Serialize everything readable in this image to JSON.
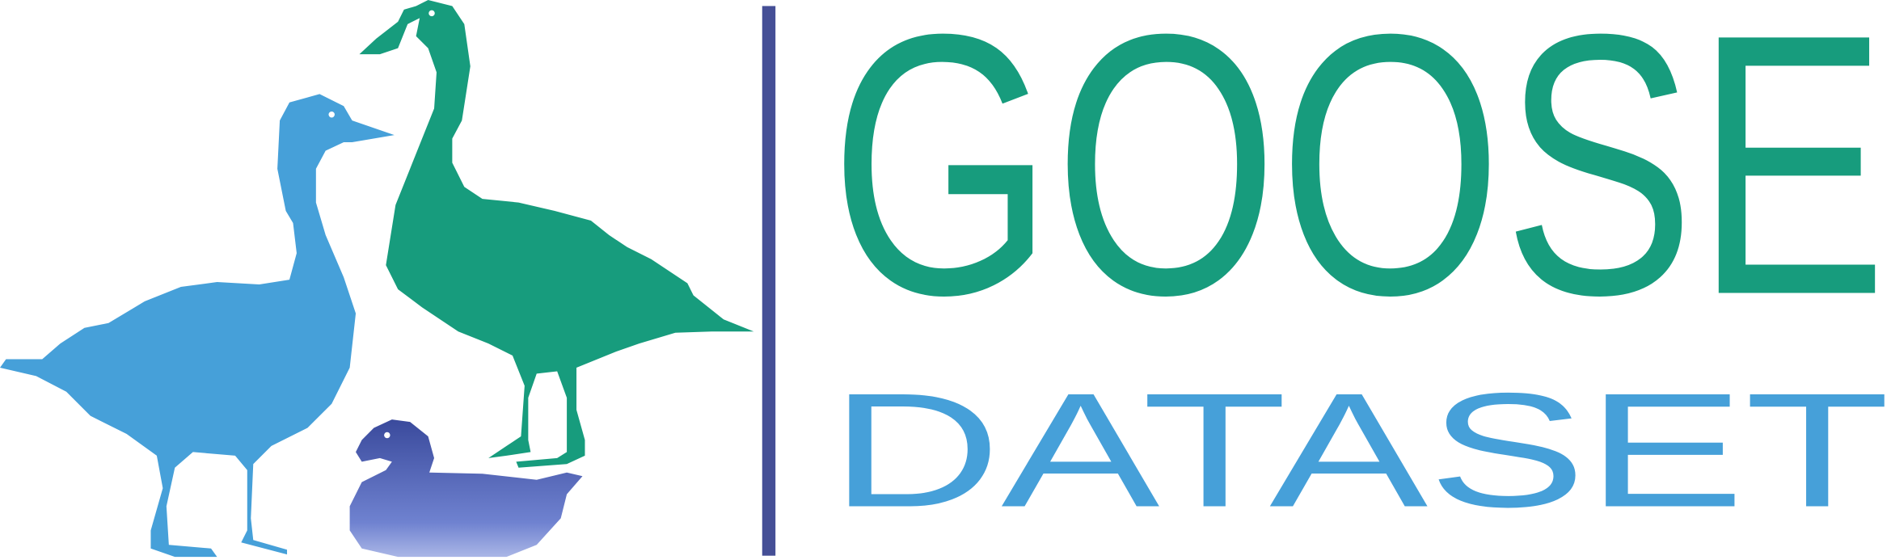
{
  "logo": {
    "line1": "GOOSE",
    "line2": "DATASET"
  }
}
